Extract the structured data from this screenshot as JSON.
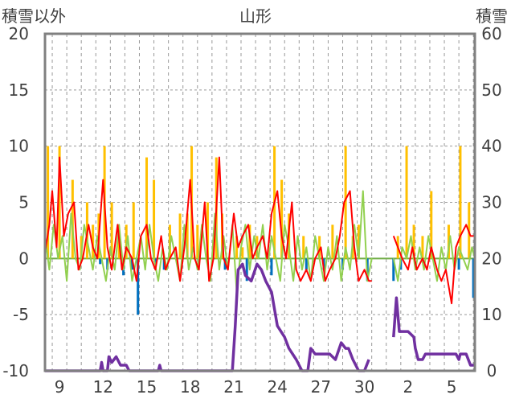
{
  "chart_data": {
    "type": "line",
    "title": "山形",
    "ylabel_left": "積雪以外",
    "ylabel_right": "積雪",
    "ylim_left": [
      -10,
      20
    ],
    "ylim_right": [
      0,
      60
    ],
    "yticks_left": [
      "20",
      "15",
      "10",
      "5",
      "0",
      "-5",
      "-10"
    ],
    "yticks_right": [
      "60",
      "50",
      "40",
      "30",
      "20",
      "10",
      "0"
    ],
    "xlim_days": [
      8.0,
      6.6
    ],
    "xtick_labels": [
      "9",
      "12",
      "15",
      "18",
      "21",
      "24",
      "27",
      "30",
      "2",
      "5"
    ],
    "grid": true,
    "colors": {
      "temperature": "#ff0000",
      "other": "#92d050",
      "precip_pos": "#ffc000",
      "precip_neg": "#0070c0",
      "snow_depth": "#7030a0",
      "zero_line": "#70ad47",
      "frame": "#808080",
      "grid": "#999999"
    },
    "series": [
      {
        "color": "temperature",
        "key": "temperature",
        "points": [
          [
            8.0,
            0.5
          ],
          [
            8.3,
            3
          ],
          [
            8.5,
            6
          ],
          [
            8.8,
            1
          ],
          [
            9.0,
            9
          ],
          [
            9.3,
            2
          ],
          [
            9.6,
            4
          ],
          [
            10.0,
            5
          ],
          [
            10.3,
            -1
          ],
          [
            10.6,
            0
          ],
          [
            11.0,
            3
          ],
          [
            11.3,
            1
          ],
          [
            11.6,
            0
          ],
          [
            12.0,
            7
          ],
          [
            12.3,
            1
          ],
          [
            12.6,
            -1
          ],
          [
            13.0,
            3
          ],
          [
            13.3,
            -1
          ],
          [
            13.6,
            1
          ],
          [
            14.0,
            0
          ],
          [
            14.3,
            -2
          ],
          [
            14.6,
            2
          ],
          [
            15.0,
            3
          ],
          [
            15.3,
            0
          ],
          [
            15.6,
            -1
          ],
          [
            16.0,
            2
          ],
          [
            16.3,
            -1
          ],
          [
            16.6,
            0
          ],
          [
            17.0,
            1
          ],
          [
            17.3,
            -2
          ],
          [
            17.6,
            1
          ],
          [
            18.0,
            7
          ],
          [
            18.3,
            0
          ],
          [
            18.6,
            -1
          ],
          [
            19.0,
            5
          ],
          [
            19.3,
            -2
          ],
          [
            19.6,
            0
          ],
          [
            20.0,
            9
          ],
          [
            20.3,
            0
          ],
          [
            20.6,
            -1
          ],
          [
            21.0,
            4
          ],
          [
            21.3,
            1
          ],
          [
            21.6,
            2
          ],
          [
            22.0,
            3
          ],
          [
            22.3,
            0
          ],
          [
            22.6,
            1
          ],
          [
            23.0,
            2
          ],
          [
            23.3,
            0
          ],
          [
            23.6,
            4
          ],
          [
            24.0,
            6
          ],
          [
            24.3,
            2
          ],
          [
            24.6,
            0
          ],
          [
            25.0,
            5
          ],
          [
            25.3,
            -1
          ],
          [
            25.6,
            -2
          ],
          [
            26.0,
            -1
          ],
          [
            26.3,
            -2
          ],
          [
            26.6,
            0
          ],
          [
            27.0,
            1
          ],
          [
            27.3,
            -2
          ],
          [
            27.6,
            -1
          ],
          [
            28.0,
            0
          ],
          [
            28.3,
            2
          ],
          [
            28.6,
            5
          ],
          [
            29.0,
            6
          ],
          [
            29.3,
            1
          ],
          [
            29.6,
            -2
          ],
          [
            30.0,
            -1
          ],
          [
            30.3,
            -2
          ],
          [
            30.5,
            -2
          ]
        ]
      },
      {
        "color": "temperature",
        "key": "temperature",
        "points": [
          [
            32.0,
            2
          ],
          [
            32.3,
            1
          ],
          [
            32.6,
            0
          ],
          [
            33.0,
            -1
          ],
          [
            33.3,
            1
          ],
          [
            33.6,
            -1
          ],
          [
            34.0,
            0
          ],
          [
            34.3,
            -1
          ],
          [
            34.6,
            1
          ],
          [
            35.0,
            -1
          ],
          [
            35.3,
            -2
          ],
          [
            35.6,
            -1
          ],
          [
            36.0,
            -4
          ],
          [
            36.3,
            1
          ],
          [
            36.6,
            2
          ],
          [
            37.0,
            3
          ],
          [
            37.3,
            2
          ],
          [
            37.6,
            2
          ]
        ]
      },
      {
        "color": "other",
        "key": "other",
        "points": [
          [
            8.0,
            2
          ],
          [
            8.3,
            -1
          ],
          [
            8.6,
            3
          ],
          [
            8.9,
            0
          ],
          [
            9.2,
            2
          ],
          [
            9.5,
            -2
          ],
          [
            9.8,
            4
          ],
          [
            10.1,
            0
          ],
          [
            10.4,
            -1
          ],
          [
            10.7,
            3
          ],
          [
            11.0,
            1
          ],
          [
            11.3,
            -1
          ],
          [
            11.6,
            2
          ],
          [
            11.9,
            0
          ],
          [
            12.2,
            -2
          ],
          [
            12.5,
            1
          ],
          [
            12.8,
            -1
          ],
          [
            13.1,
            3
          ],
          [
            13.4,
            -1
          ],
          [
            13.7,
            2
          ],
          [
            14.0,
            -2
          ],
          [
            14.3,
            0
          ],
          [
            14.6,
            2
          ],
          [
            14.9,
            -1
          ],
          [
            15.2,
            3
          ],
          [
            15.5,
            0
          ],
          [
            15.8,
            -2
          ],
          [
            16.1,
            1
          ],
          [
            16.4,
            -1
          ],
          [
            16.7,
            2
          ],
          [
            17.0,
            0
          ],
          [
            17.3,
            -2
          ],
          [
            17.6,
            3
          ],
          [
            17.9,
            -1
          ],
          [
            18.2,
            1
          ],
          [
            18.5,
            -1
          ],
          [
            18.8,
            3
          ],
          [
            19.1,
            0
          ],
          [
            19.4,
            -2
          ],
          [
            19.7,
            4
          ],
          [
            20.0,
            -1
          ],
          [
            20.3,
            2
          ],
          [
            20.6,
            -1
          ],
          [
            20.9,
            3
          ],
          [
            21.2,
            -3
          ],
          [
            21.5,
            1
          ],
          [
            21.8,
            3
          ],
          [
            22.1,
            -1
          ],
          [
            22.4,
            2
          ],
          [
            22.7,
            0
          ],
          [
            23.0,
            3
          ],
          [
            23.3,
            -1
          ],
          [
            23.6,
            2
          ],
          [
            23.9,
            0
          ],
          [
            24.2,
            -2
          ],
          [
            24.5,
            3
          ],
          [
            24.8,
            1
          ],
          [
            25.1,
            -2
          ],
          [
            25.4,
            2
          ],
          [
            25.7,
            -1
          ],
          [
            26.0,
            1
          ],
          [
            26.3,
            -2
          ],
          [
            26.6,
            2
          ],
          [
            26.9,
            0
          ],
          [
            27.2,
            -2
          ],
          [
            27.5,
            1
          ],
          [
            27.8,
            -1
          ],
          [
            28.1,
            2
          ],
          [
            28.4,
            -2
          ],
          [
            28.7,
            1
          ],
          [
            29.0,
            -1
          ],
          [
            29.3,
            3
          ],
          [
            29.6,
            0
          ],
          [
            29.9,
            6
          ],
          [
            30.2,
            -2
          ],
          [
            30.5,
            0
          ]
        ]
      },
      {
        "color": "other",
        "key": "other",
        "points": [
          [
            32.0,
            0
          ],
          [
            32.3,
            -2
          ],
          [
            32.6,
            1
          ],
          [
            32.9,
            0
          ],
          [
            33.2,
            2
          ],
          [
            33.5,
            -1
          ],
          [
            33.8,
            1
          ],
          [
            34.1,
            -1
          ],
          [
            34.4,
            2
          ],
          [
            34.7,
            0
          ],
          [
            35.0,
            -2
          ],
          [
            35.3,
            1
          ],
          [
            35.6,
            -1
          ],
          [
            35.9,
            2
          ],
          [
            36.2,
            -1
          ],
          [
            36.5,
            1
          ],
          [
            36.8,
            0
          ],
          [
            37.1,
            -1
          ],
          [
            37.4,
            1
          ],
          [
            37.6,
            0
          ]
        ]
      },
      {
        "color": "snow_depth",
        "key": "snow_depth",
        "axis": "right",
        "points": [
          [
            8.0,
            0
          ],
          [
            11.8,
            0
          ],
          [
            11.9,
            1.5
          ],
          [
            12.0,
            0
          ],
          [
            12.3,
            0
          ],
          [
            12.4,
            2.5
          ],
          [
            12.6,
            1.5
          ],
          [
            12.9,
            2.5
          ],
          [
            13.2,
            1
          ],
          [
            13.6,
            1
          ],
          [
            13.8,
            0
          ],
          [
            15.8,
            0
          ],
          [
            15.9,
            1
          ],
          [
            16.0,
            0
          ],
          [
            20.9,
            0
          ],
          [
            21.1,
            8
          ],
          [
            21.3,
            18
          ],
          [
            21.6,
            19
          ],
          [
            21.8,
            17
          ],
          [
            22.2,
            16
          ],
          [
            22.6,
            19
          ],
          [
            22.9,
            18
          ],
          [
            23.2,
            16
          ],
          [
            23.6,
            14
          ],
          [
            24.0,
            8
          ],
          [
            24.5,
            6
          ],
          [
            24.8,
            4
          ],
          [
            25.3,
            2
          ],
          [
            25.7,
            0
          ],
          [
            26.1,
            0
          ],
          [
            26.3,
            4
          ],
          [
            26.6,
            3
          ],
          [
            27.6,
            3
          ],
          [
            28.0,
            2
          ],
          [
            28.4,
            5
          ],
          [
            28.7,
            4
          ],
          [
            28.9,
            4
          ],
          [
            29.2,
            2
          ],
          [
            29.6,
            0
          ],
          [
            30.0,
            0
          ],
          [
            30.3,
            2
          ]
        ]
      },
      {
        "color": "snow_depth",
        "key": "snow_depth",
        "axis": "right",
        "points": [
          [
            32.0,
            6
          ],
          [
            32.2,
            13
          ],
          [
            32.4,
            7
          ],
          [
            32.6,
            7
          ],
          [
            33.0,
            7
          ],
          [
            33.4,
            6
          ],
          [
            33.5,
            4
          ],
          [
            33.7,
            2
          ],
          [
            34.0,
            2
          ],
          [
            34.2,
            3
          ],
          [
            36.0,
            3
          ],
          [
            36.3,
            3
          ],
          [
            36.5,
            2
          ],
          [
            36.6,
            3
          ],
          [
            37.0,
            3
          ],
          [
            37.3,
            1
          ],
          [
            37.6,
            1
          ]
        ]
      }
    ],
    "bars": {
      "precip_pos": [
        [
          8.2,
          10
        ],
        [
          9.0,
          10
        ],
        [
          9.9,
          7
        ],
        [
          10.5,
          2
        ],
        [
          10.9,
          5
        ],
        [
          11.3,
          3
        ],
        [
          11.7,
          4
        ],
        [
          12.1,
          10
        ],
        [
          12.6,
          5
        ],
        [
          13.1,
          2
        ],
        [
          13.6,
          3
        ],
        [
          14.1,
          5
        ],
        [
          15.0,
          9
        ],
        [
          15.5,
          7
        ],
        [
          16.6,
          3
        ],
        [
          17.3,
          4
        ],
        [
          17.8,
          4
        ],
        [
          18.1,
          10
        ],
        [
          18.5,
          3
        ],
        [
          19.2,
          5
        ],
        [
          19.8,
          9
        ],
        [
          20.2,
          4
        ],
        [
          21.2,
          2
        ],
        [
          21.6,
          1
        ],
        [
          22.1,
          3
        ],
        [
          22.6,
          2
        ],
        [
          23.8,
          10
        ],
        [
          24.3,
          7
        ],
        [
          24.8,
          4
        ],
        [
          25.8,
          2
        ],
        [
          26.9,
          2
        ],
        [
          27.8,
          3
        ],
        [
          28.7,
          10
        ],
        [
          29.2,
          2
        ],
        [
          29.6,
          3
        ],
        [
          32.3,
          2
        ],
        [
          32.9,
          10
        ],
        [
          33.4,
          3
        ],
        [
          34.0,
          2
        ],
        [
          34.6,
          6
        ],
        [
          35.8,
          3
        ],
        [
          36.6,
          10
        ],
        [
          37.2,
          5
        ]
      ],
      "precip_neg": [
        [
          11.8,
          -0.5
        ],
        [
          12.3,
          -1
        ],
        [
          13.4,
          -1.5
        ],
        [
          14.0,
          -1
        ],
        [
          14.4,
          -5
        ],
        [
          15.6,
          -0.5
        ],
        [
          16.2,
          -1
        ],
        [
          20.4,
          -1
        ],
        [
          21.9,
          -2
        ],
        [
          23.6,
          -1.5
        ],
        [
          26.0,
          -1
        ],
        [
          27.2,
          -1
        ],
        [
          28.5,
          -1
        ],
        [
          30.2,
          -2
        ],
        [
          32.0,
          -2
        ],
        [
          32.5,
          -1
        ],
        [
          36.5,
          -1
        ],
        [
          37.5,
          -3.5
        ]
      ]
    }
  }
}
